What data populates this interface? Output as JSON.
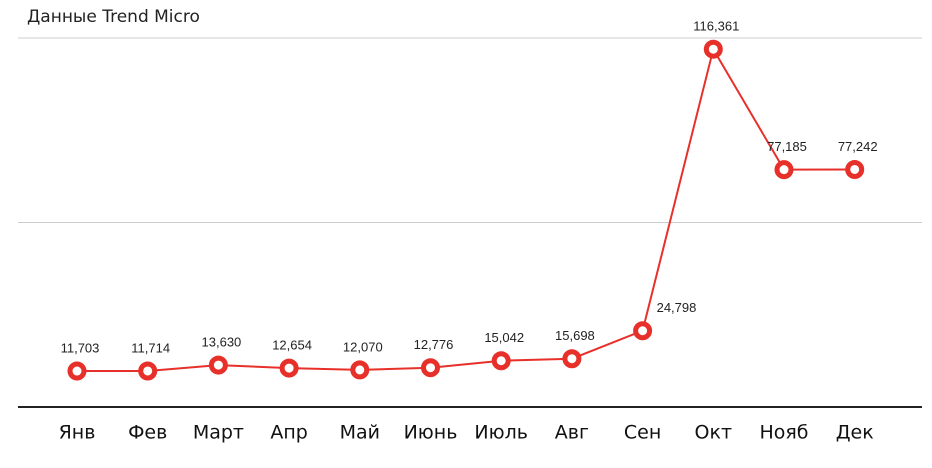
{
  "chart_data": {
    "type": "line",
    "title": "Данные Trend Micro",
    "categories": [
      "Янв",
      "Фев",
      "Март",
      "Апр",
      "Май",
      "Июнь",
      "Июль",
      "Авг",
      "Сен",
      "Окт",
      "Нояб",
      "Дек"
    ],
    "values": [
      11703,
      11714,
      13630,
      12654,
      12070,
      12776,
      15042,
      15698,
      24798,
      116361,
      77185,
      77242
    ],
    "value_labels": [
      "11,703",
      "11,714",
      "13,630",
      "12,654",
      "12,070",
      "12,776",
      "15,042",
      "15,698",
      "24,798",
      "116,361",
      "77,185",
      "77,242"
    ],
    "color": "#e8302a",
    "ylim": [
      0,
      120000
    ],
    "yticks": [
      0,
      60000,
      120000
    ],
    "grid": true
  }
}
